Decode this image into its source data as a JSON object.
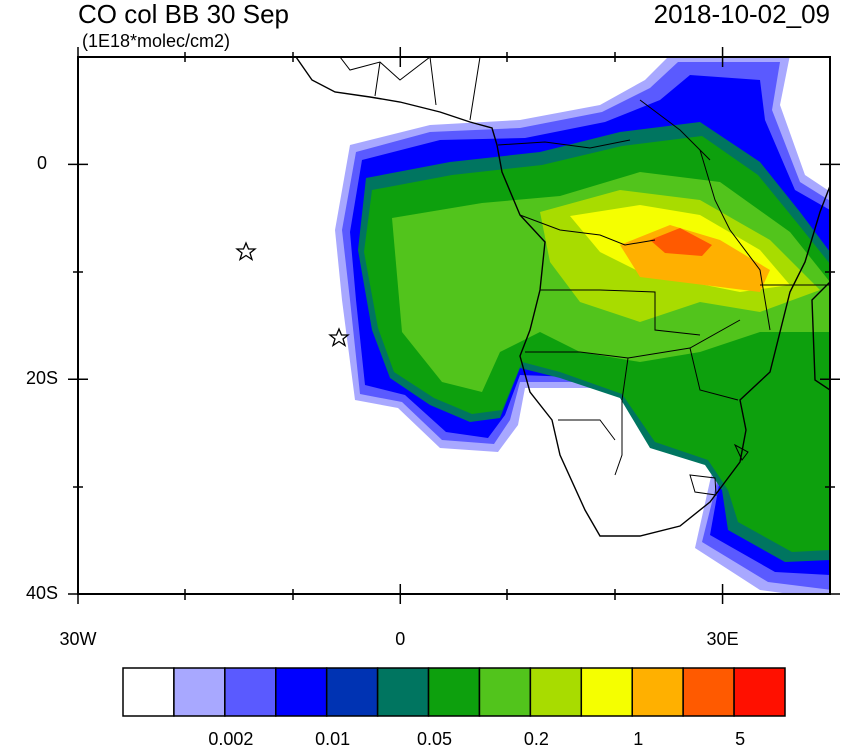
{
  "chart_data": {
    "type": "map",
    "title": "CO col BB 30 Sep",
    "subtitle": "(1E18*molec/cm2)",
    "date": "2018-10-02_09",
    "xlim": [
      -30,
      40
    ],
    "ylim": [
      -40,
      10
    ],
    "xticks": [
      {
        "value": -30,
        "label": "30W"
      },
      0,
      {
        "value": 30,
        "label": "30E"
      }
    ],
    "yticks": [
      0,
      {
        "value": -20,
        "label": "20S"
      },
      {
        "value": -40,
        "label": "40S"
      }
    ],
    "colorbar": {
      "colors": [
        "#ffffff",
        "#a8a8ff",
        "#5a5aff",
        "#0000ff",
        "#0033b3",
        "#007560",
        "#0da00d",
        "#52c41c",
        "#a8dc00",
        "#f5ff00",
        "#ffb000",
        "#ff5a00",
        "#ff1000"
      ],
      "labels": [
        "0.002",
        "0.01",
        "0.05",
        "0.2",
        "1",
        "5"
      ]
    }
  }
}
